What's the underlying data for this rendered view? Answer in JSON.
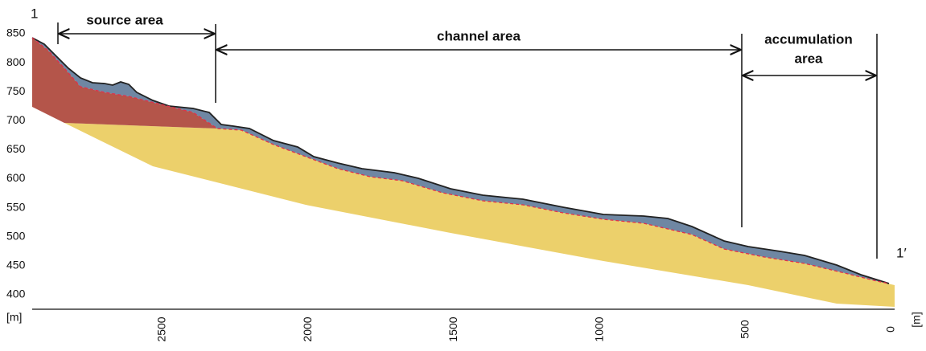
{
  "labels": {
    "start": "1",
    "end": "1′",
    "source": "source area",
    "channel": "channel area",
    "accumulation": [
      "accumulation",
      "area"
    ]
  },
  "y_axis": {
    "ticks": [
      850,
      800,
      750,
      700,
      650,
      600,
      550,
      500,
      450,
      400
    ],
    "unit": "[m]"
  },
  "x_axis": {
    "ticks": [
      2500,
      2000,
      1500,
      1000,
      500,
      0
    ],
    "unit": "[m]"
  }
}
